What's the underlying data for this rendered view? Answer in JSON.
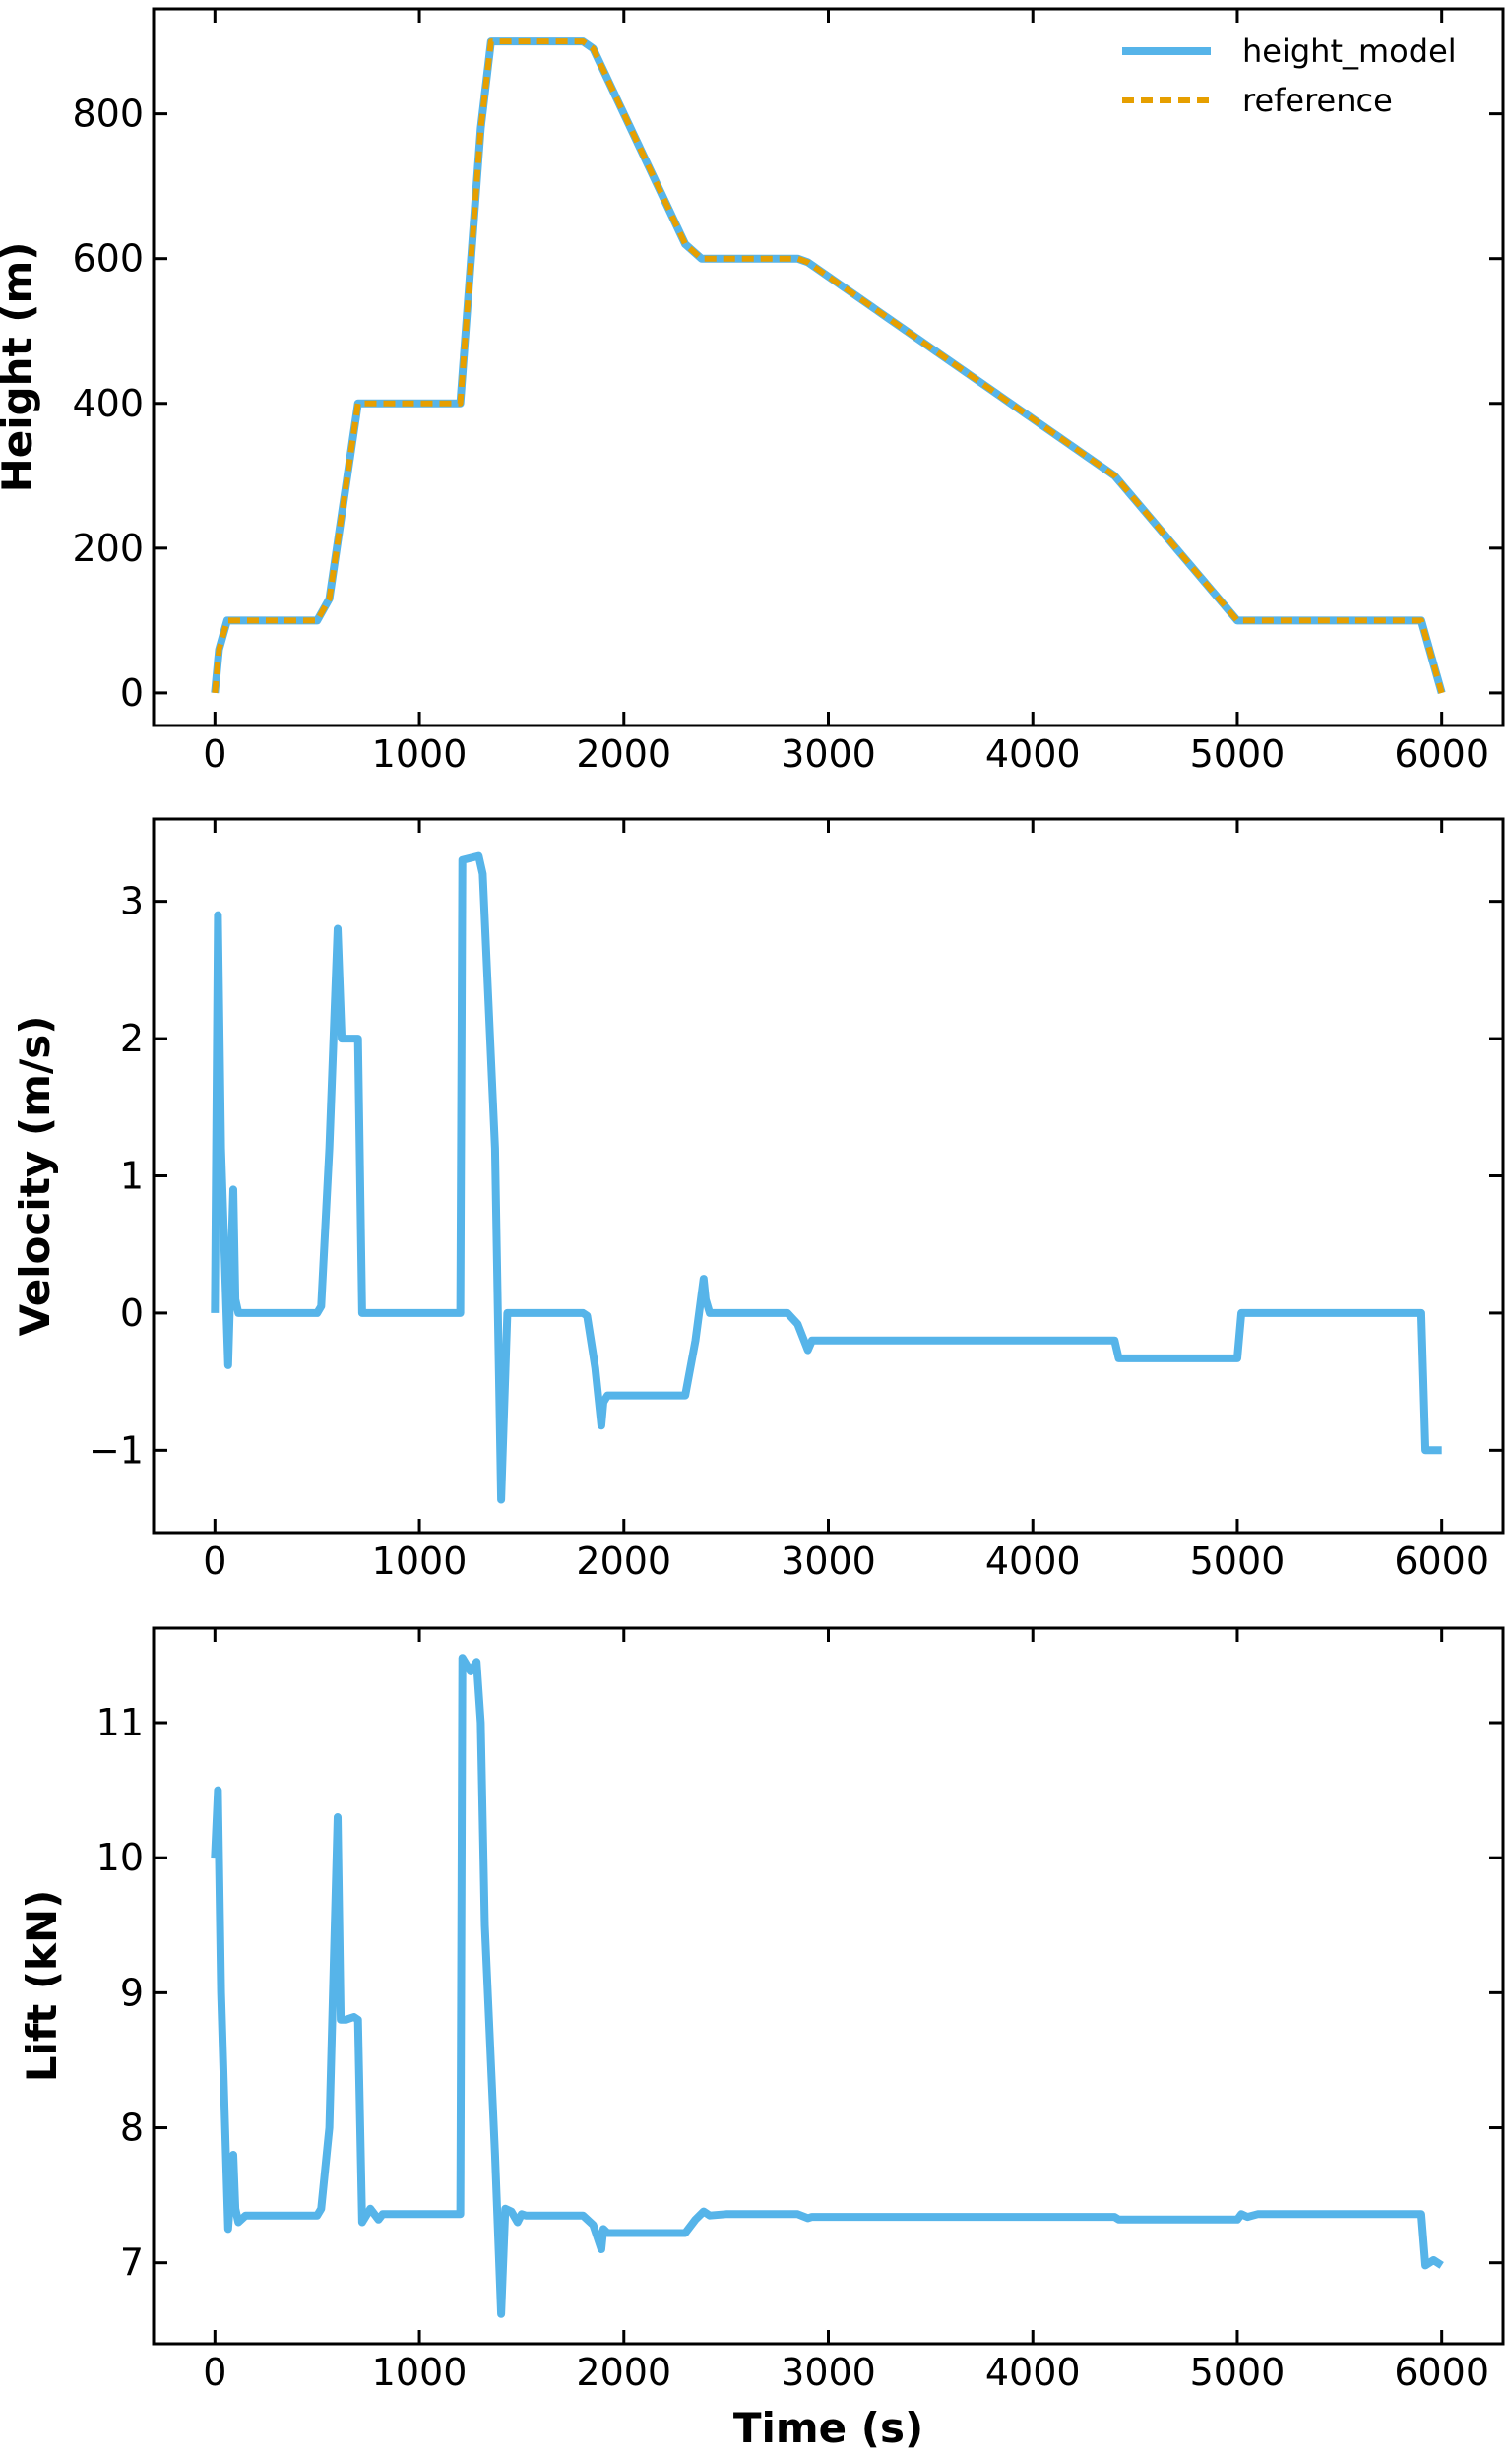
{
  "colors": {
    "model": "#56B4E9",
    "reference": "#E69F00",
    "axis": "#000000"
  },
  "chart_data": [
    {
      "type": "line",
      "xlabel": "",
      "ylabel": "Height (m)",
      "xlim": [
        -300,
        6300
      ],
      "ylim": [
        -45,
        945
      ],
      "xticks": [
        0,
        1000,
        2000,
        3000,
        4000,
        5000,
        6000
      ],
      "yticks": [
        0,
        200,
        400,
        600,
        800
      ],
      "legend": {
        "placement": "top-right",
        "entries": [
          "height_model",
          "reference"
        ]
      },
      "series": [
        {
          "name": "height_model",
          "color": "#56B4E9",
          "x": [
            0,
            20,
            60,
            500,
            560,
            700,
            1200,
            1300,
            1350,
            1800,
            1850,
            2300,
            2380,
            2850,
            2900,
            4400,
            5000,
            5900,
            6000
          ],
          "y": [
            0,
            60,
            100,
            100,
            130,
            400,
            400,
            780,
            900,
            900,
            890,
            620,
            600,
            600,
            595,
            300,
            100,
            100,
            0
          ]
        },
        {
          "name": "reference",
          "color": "#E69F00",
          "dashed": true,
          "x": [
            0,
            20,
            60,
            500,
            560,
            700,
            1200,
            1300,
            1350,
            1800,
            1850,
            2300,
            2380,
            2850,
            2900,
            4400,
            5000,
            5900,
            6000
          ],
          "y": [
            0,
            60,
            100,
            100,
            130,
            400,
            400,
            780,
            900,
            900,
            890,
            620,
            600,
            600,
            595,
            300,
            100,
            100,
            0
          ]
        }
      ]
    },
    {
      "type": "line",
      "xlabel": "",
      "ylabel": "Velocity (m/s)",
      "xlim": [
        -300,
        6300
      ],
      "ylim": [
        -1.6,
        3.6
      ],
      "xticks": [
        0,
        1000,
        2000,
        3000,
        4000,
        5000,
        6000
      ],
      "yticks": [
        -1,
        0,
        1,
        2,
        3
      ],
      "series": [
        {
          "name": "",
          "color": "#56B4E9",
          "x": [
            0,
            15,
            30,
            65,
            90,
            100,
            115,
            200,
            500,
            520,
            560,
            600,
            620,
            700,
            720,
            1200,
            1210,
            1290,
            1310,
            1370,
            1400,
            1430,
            1500,
            1800,
            1820,
            1860,
            1890,
            1900,
            1920,
            2300,
            2350,
            2390,
            2400,
            2420,
            2800,
            2850,
            2900,
            2920,
            4400,
            4420,
            5000,
            5020,
            5900,
            5920,
            6000
          ],
          "y": [
            0,
            2.9,
            1.2,
            -0.38,
            0.9,
            0.1,
            0,
            0,
            0,
            0.05,
            1.2,
            2.8,
            2.0,
            2.0,
            0,
            0,
            3.3,
            3.33,
            3.2,
            1.2,
            -1.36,
            0,
            0,
            0,
            -0.02,
            -0.4,
            -0.82,
            -0.65,
            -0.6,
            -0.6,
            -0.2,
            0.25,
            0.1,
            0,
            0,
            -0.08,
            -0.27,
            -0.2,
            -0.2,
            -0.33,
            -0.33,
            0,
            0,
            -1,
            -1
          ]
        }
      ]
    },
    {
      "type": "line",
      "xlabel": "Time (s)",
      "ylabel": "Lift (kN)",
      "xlim": [
        -300,
        6300
      ],
      "ylim": [
        6.4,
        11.7
      ],
      "xticks": [
        0,
        1000,
        2000,
        3000,
        4000,
        5000,
        6000
      ],
      "yticks": [
        7,
        8,
        9,
        10,
        11
      ],
      "series": [
        {
          "name": "",
          "color": "#56B4E9",
          "x": [
            0,
            15,
            30,
            65,
            90,
            100,
            115,
            150,
            200,
            500,
            520,
            560,
            600,
            615,
            640,
            680,
            700,
            720,
            760,
            800,
            820,
            1200,
            1210,
            1250,
            1280,
            1300,
            1320,
            1370,
            1400,
            1420,
            1450,
            1480,
            1500,
            1520,
            1800,
            1850,
            1890,
            1900,
            1920,
            2000,
            2300,
            2350,
            2390,
            2420,
            2500,
            2850,
            2900,
            2920,
            4400,
            4420,
            5000,
            5020,
            5050,
            5100,
            5900,
            5920,
            5960,
            6000
          ],
          "y": [
            10,
            10.5,
            9.0,
            7.25,
            7.8,
            7.4,
            7.3,
            7.35,
            7.35,
            7.35,
            7.4,
            8.0,
            10.3,
            8.8,
            8.8,
            8.82,
            8.8,
            7.3,
            7.4,
            7.32,
            7.36,
            7.36,
            11.48,
            11.38,
            11.45,
            11.0,
            9.5,
            7.8,
            6.62,
            7.4,
            7.38,
            7.3,
            7.36,
            7.35,
            7.35,
            7.28,
            7.1,
            7.25,
            7.22,
            7.22,
            7.22,
            7.32,
            7.38,
            7.35,
            7.36,
            7.36,
            7.33,
            7.34,
            7.34,
            7.32,
            7.32,
            7.36,
            7.34,
            7.36,
            7.36,
            6.98,
            7.02,
            6.98
          ]
        }
      ]
    }
  ]
}
